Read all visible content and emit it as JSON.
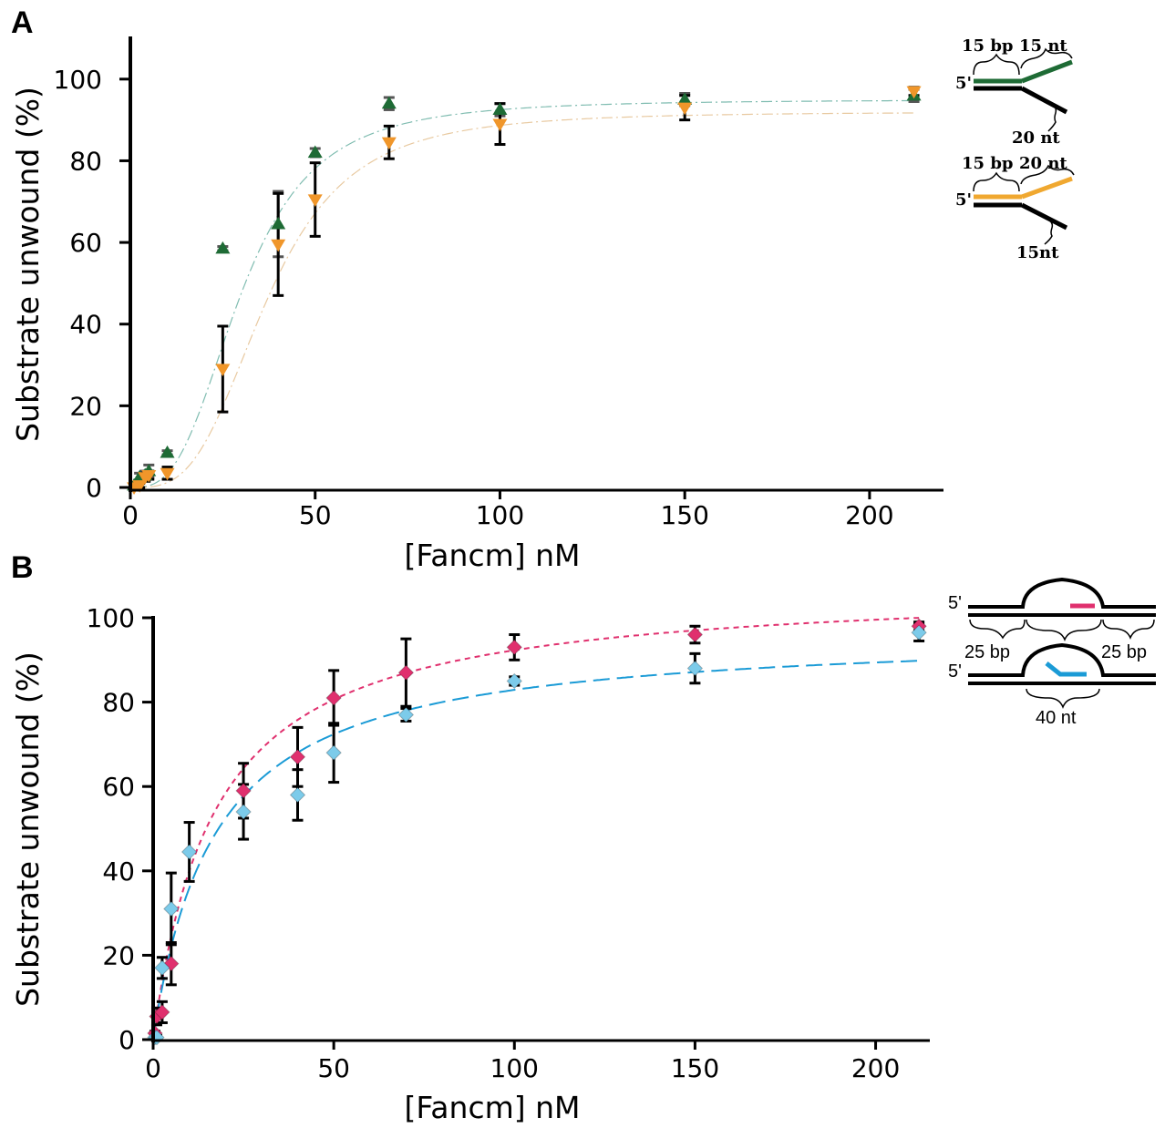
{
  "panels": {
    "a": {
      "letter": "A",
      "diagram": {
        "top": {
          "duplex": "15 bp",
          "flap": "15 nt",
          "end": "5'",
          "tail": "20 nt"
        },
        "bottom": {
          "duplex": "15 bp",
          "flap": "20 nt",
          "end": "5'",
          "tail": "15nt"
        }
      }
    },
    "b": {
      "letter": "B",
      "diagram": {
        "top_end": "5'",
        "bottom_end": "5'",
        "left_arm": "25 bp",
        "right_arm": "25 bp",
        "bubble": "40 nt"
      }
    }
  },
  "chart_data": [
    {
      "type": "scatter",
      "panel": "A",
      "xlabel": "[Fancm] nM",
      "ylabel": "Substrate unwound (%)",
      "xlim": [
        0,
        220
      ],
      "ylim": [
        0,
        110
      ],
      "xticks": [
        0,
        50,
        100,
        150,
        200
      ],
      "yticks": [
        0,
        20,
        40,
        60,
        80,
        100
      ],
      "series": [
        {
          "marker": "triangle-up",
          "color": "#1e6b35",
          "errorbar_color": "#555555",
          "fit_color": "#7fbcb0",
          "x": [
            1,
            2.5,
            4,
            5,
            10,
            25,
            40,
            50,
            70,
            100,
            150,
            212
          ],
          "y": [
            0.5,
            2.5,
            3,
            4,
            8.5,
            58.5,
            64.5,
            82,
            94,
            92.5,
            95,
            96
          ],
          "err": [
            0.5,
            1,
            1,
            1.5,
            0.5,
            0.5,
            8,
            1,
            1.5,
            1.5,
            1.5,
            1.5
          ],
          "fit": {
            "model": "hill",
            "max": 95,
            "k": 30,
            "n": 3
          }
        },
        {
          "marker": "triangle-down",
          "color": "#f0962a",
          "errorbar_color": "#000000",
          "fit_color": "#e8c9a0",
          "x": [
            1,
            2.5,
            4,
            5,
            10,
            25,
            40,
            50,
            70,
            100,
            150,
            212
          ],
          "y": [
            0,
            0.5,
            2.5,
            3,
            3.5,
            29,
            59.5,
            70.5,
            84.5,
            89,
            93,
            97
          ],
          "err": [
            0.5,
            0.5,
            1,
            1,
            1.5,
            10.5,
            12.5,
            9,
            4,
            5,
            3,
            1
          ],
          "fit": {
            "model": "hill",
            "max": 92,
            "k": 37,
            "n": 3.3
          }
        }
      ]
    },
    {
      "type": "scatter",
      "panel": "B",
      "xlabel": "[Fancm] nM",
      "ylabel": "Substrate unwound (%)",
      "xlim": [
        0,
        215
      ],
      "ylim": [
        0,
        100
      ],
      "xticks": [
        0,
        50,
        100,
        150,
        200
      ],
      "yticks": [
        0,
        20,
        40,
        60,
        80,
        100
      ],
      "series": [
        {
          "marker": "diamond",
          "color": "#e0306e",
          "errorbar_color": "#000000",
          "fit_color": "#e0306e",
          "fit_dash": "6 5",
          "x": [
            0.5,
            1,
            2.5,
            5,
            25,
            40,
            50,
            70,
            100,
            150,
            212
          ],
          "y": [
            1.5,
            5.5,
            6.5,
            18,
            59,
            67,
            81,
            87,
            93,
            96,
            98
          ],
          "err": [
            0.5,
            2,
            2.5,
            5,
            6.5,
            7,
            6.5,
            8,
            3,
            2,
            1
          ],
          "fit": {
            "model": "hill",
            "max": 108,
            "k": 17,
            "n": 1
          }
        },
        {
          "marker": "diamond",
          "color": "#7ccbea",
          "errorbar_color": "#000000",
          "fit_color": "#1b9bd6",
          "fit_dash": "18 8",
          "x": [
            0.5,
            1,
            2.5,
            5,
            10,
            25,
            40,
            50,
            70,
            100,
            150,
            212
          ],
          "y": [
            0.5,
            0.5,
            17,
            31,
            44.5,
            54,
            58,
            68,
            77,
            85,
            88,
            96.5
          ],
          "err": [
            0.5,
            0.5,
            2.5,
            8.5,
            7,
            6.5,
            6,
            7,
            1.5,
            1,
            3.5,
            2
          ],
          "fit": {
            "model": "hill",
            "max": 97,
            "k": 17,
            "n": 1
          }
        }
      ]
    }
  ]
}
